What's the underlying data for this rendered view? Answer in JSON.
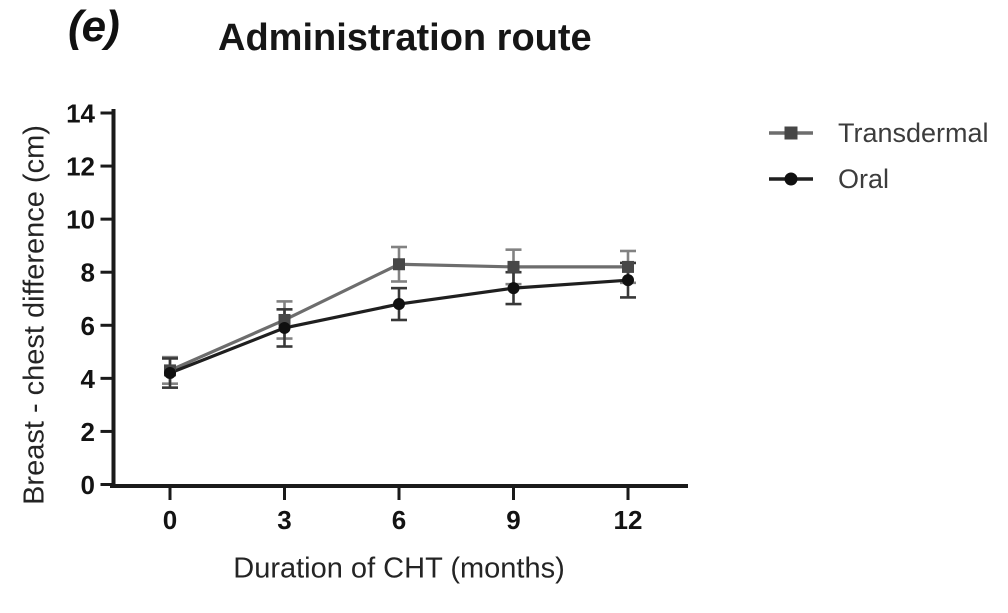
{
  "figure": {
    "panel_label": "(e)",
    "title": "Administration route"
  },
  "chart_data": {
    "type": "line",
    "title": "Administration route",
    "xlabel": "Duration of CHT (months)",
    "ylabel": "Breast - chest difference (cm)",
    "x": [
      0,
      3,
      6,
      9,
      12
    ],
    "x_tick_labels": [
      "0",
      "3",
      "6",
      "9",
      "12"
    ],
    "xlim": [
      0,
      12
    ],
    "ylim": [
      0,
      14
    ],
    "y_ticks": [
      0,
      2,
      4,
      6,
      8,
      10,
      12,
      14
    ],
    "y_tick_labels": [
      "0",
      "2",
      "4",
      "6",
      "8",
      "10",
      "12",
      "14"
    ],
    "grid": false,
    "error_bars": true,
    "legend_position": "right-outside",
    "axis_color": "#1a1a1a",
    "series": [
      {
        "name": "Transdermal",
        "marker": "square",
        "line_color": "#6d6d6d",
        "marker_color": "#474747",
        "error_color": "#828282",
        "values": [
          4.3,
          6.2,
          8.3,
          8.2,
          8.2
        ],
        "errors": [
          0.5,
          0.7,
          0.65,
          0.65,
          0.6
        ]
      },
      {
        "name": "Oral",
        "marker": "circle",
        "line_color": "#1f1f1f",
        "marker_color": "#101010",
        "error_color": "#383838",
        "values": [
          4.2,
          5.9,
          6.8,
          7.4,
          7.7
        ],
        "errors": [
          0.55,
          0.7,
          0.6,
          0.6,
          0.65
        ]
      }
    ]
  }
}
